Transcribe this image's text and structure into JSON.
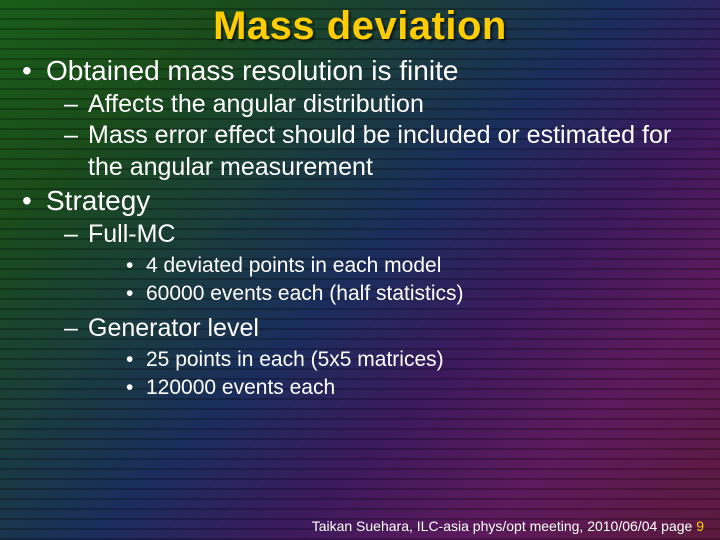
{
  "title": "Mass deviation",
  "bullets": {
    "b1": "Obtained mass resolution is finite",
    "b1_1": "Affects the angular distribution",
    "b1_2": "Mass error effect should be included or estimated for the angular measurement",
    "b2": "Strategy",
    "b2_1": "Full-MC",
    "b2_1_1": "4 deviated points in each model",
    "b2_1_2": "60000 events each (half statistics)",
    "b2_2": "Generator level",
    "b2_2_1": "25 points in each (5x5 matrices)",
    "b2_2_2": "120000 events each"
  },
  "footer": {
    "text": "Taikan Suehara, ILC-asia phys/opt meeting, 2010/06/04",
    "page_label": "page",
    "page_num": "9"
  },
  "colors": {
    "title": "#ffcc00",
    "text": "#ffffff",
    "page_num": "#ffcc00"
  },
  "fonts": {
    "title_size": 40,
    "lvl1_size": 28,
    "lvl2_size": 25,
    "lvl3_size": 21,
    "footer_size": 14
  }
}
